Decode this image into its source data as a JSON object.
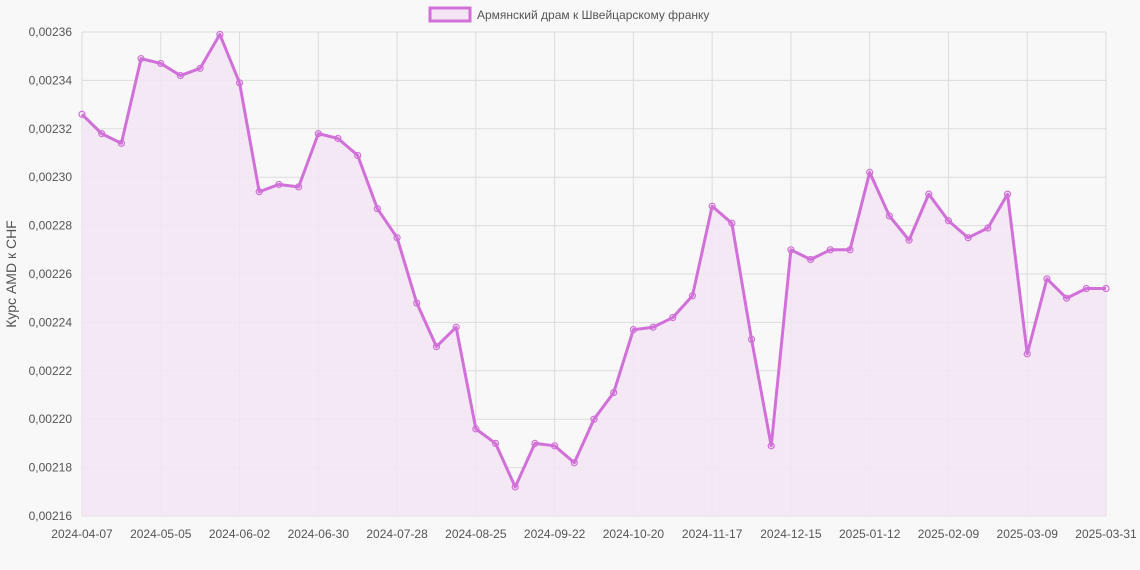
{
  "chart_data": {
    "type": "line",
    "ylabel": "Курс AMD к CHF",
    "ylim": [
      0.00216,
      0.00236
    ],
    "y_ticks": [
      "0,00236",
      "0,00234",
      "0,00232",
      "0,00230",
      "0,00228",
      "0,00226",
      "0,00224",
      "0,00222",
      "0,00220",
      "0,00218",
      "0,00216"
    ],
    "x_tick_labels": [
      "2024-04-07",
      "2024-05-05",
      "2024-06-02",
      "2024-06-30",
      "2024-07-28",
      "2024-08-25",
      "2024-09-22",
      "2024-10-20",
      "2024-11-17",
      "2024-12-15",
      "2025-01-12",
      "2025-02-09",
      "2025-03-09",
      "2025-03-31"
    ],
    "legend_position": "top",
    "grid": true,
    "colors": {
      "line": "#d170d8",
      "fill": "#f3e5f4",
      "grid": "#dcdcdc"
    },
    "series": [
      {
        "name": "Армянский драм к Швейцарскому франку",
        "values": [
          0.002326,
          0.002318,
          0.002314,
          0.002349,
          0.002347,
          0.002342,
          0.002345,
          0.002359,
          0.002339,
          0.002294,
          0.002297,
          0.002296,
          0.002318,
          0.002316,
          0.002309,
          0.002287,
          0.002275,
          0.002248,
          0.00223,
          0.002238,
          0.002196,
          0.00219,
          0.002172,
          0.00219,
          0.002189,
          0.002182,
          0.0022,
          0.002211,
          0.002237,
          0.002238,
          0.002242,
          0.002251,
          0.002288,
          0.002281,
          0.002233,
          0.002189,
          0.00227,
          0.002266,
          0.00227,
          0.00227,
          0.002302,
          0.002284,
          0.002274,
          0.002293,
          0.002282,
          0.002275,
          0.002279,
          0.002293,
          0.002227,
          0.002258,
          0.00225,
          0.002254,
          0.002254
        ]
      }
    ]
  }
}
